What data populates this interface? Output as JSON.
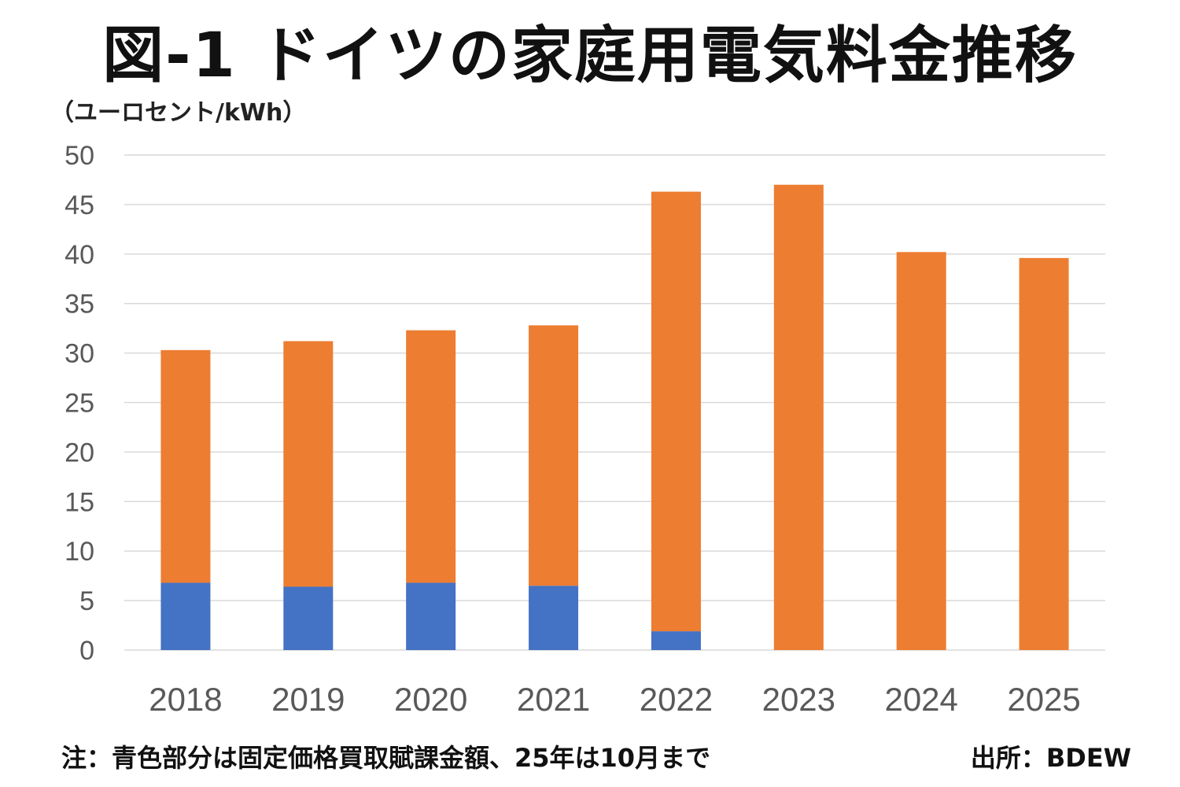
{
  "chart_data": {
    "type": "bar",
    "stacked": true,
    "title": "図-1 ドイツの家庭用電気料金推移",
    "ylabel": "（ユーロセント/kWh）",
    "categories": [
      "2018",
      "2019",
      "2020",
      "2021",
      "2022",
      "2023",
      "2024",
      "2025"
    ],
    "series": [
      {
        "color": "#4472C4",
        "values": [
          6.8,
          6.4,
          6.8,
          6.5,
          1.9,
          0,
          0,
          0
        ]
      },
      {
        "color": "#ED7D31",
        "values": [
          23.5,
          24.8,
          25.5,
          26.3,
          44.4,
          47.0,
          40.2,
          39.6
        ]
      }
    ],
    "ylim": [
      0,
      50
    ],
    "yticks": [
      0,
      5,
      10,
      15,
      20,
      25,
      30,
      35,
      40,
      45,
      50
    ],
    "grid": true,
    "legend": "none"
  },
  "footer": {
    "note": "注：青色部分は固定価格買取賦課金額、25年は10月まで",
    "source": "出所：BDEW"
  }
}
